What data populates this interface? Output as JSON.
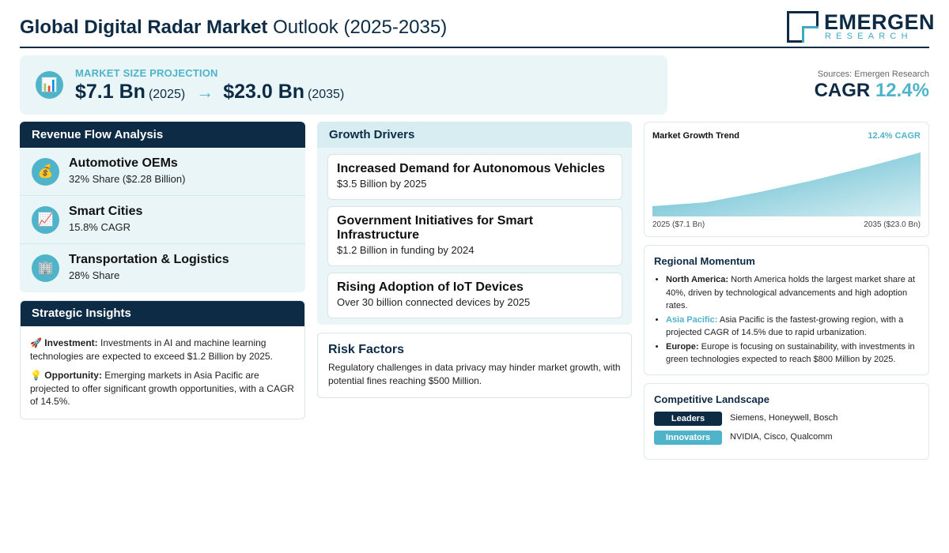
{
  "header": {
    "title_bold": "Global Digital Radar Market",
    "title_light": "Outlook (2025-2035)",
    "logo_main": "EMERGEN",
    "logo_sub": "RESEARCH"
  },
  "projection": {
    "icon": "bar-chart-icon",
    "label": "MARKET SIZE PROJECTION",
    "start_value": "$7.1 Bn",
    "start_year": "(2025)",
    "arrow": "→",
    "end_value": "$23.0 Bn",
    "end_year": "(2035)"
  },
  "cagr_block": {
    "source": "Sources: Emergen Research",
    "label": "CAGR",
    "value": "12.4%"
  },
  "revenue": {
    "title": "Revenue Flow Analysis",
    "items": [
      {
        "icon": "money-bag-icon",
        "glyph": "💰",
        "title": "Automotive OEMs",
        "sub": "32% Share ($2.28 Billion)"
      },
      {
        "icon": "trend-chart-icon",
        "glyph": "📈",
        "title": "Smart Cities",
        "sub": "15.8% CAGR"
      },
      {
        "icon": "office-building-icon",
        "glyph": "🏢",
        "title": "Transportation & Logistics",
        "sub": "28% Share"
      }
    ]
  },
  "insights": {
    "title": "Strategic Insights",
    "items": [
      {
        "icon": "rocket-icon",
        "glyph": "🚀",
        "label": "Investment:",
        "text": "Investments in AI and machine learning technologies are expected to exceed $1.2 Billion by 2025."
      },
      {
        "icon": "lightbulb-icon",
        "glyph": "💡",
        "label": "Opportunity:",
        "text": "Emerging markets in Asia Pacific are projected to offer significant growth opportunities, with a CAGR of 14.5%."
      }
    ]
  },
  "drivers": {
    "title": "Growth Drivers",
    "items": [
      {
        "title": "Increased Demand for Autonomous Vehicles",
        "sub": "$3.5 Billion by 2025"
      },
      {
        "title": "Government Initiatives for Smart Infrastructure",
        "sub": "$1.2 Billion in funding by 2024"
      },
      {
        "title": "Rising Adoption of IoT Devices",
        "sub": "Over 30 billion connected devices by 2025"
      }
    ]
  },
  "risk": {
    "title": "Risk Factors",
    "text": "Regulatory challenges in data privacy may hinder market growth, with potential fines reaching $500 Million."
  },
  "trend": {
    "title": "Market Growth Trend",
    "cagr_label": "12.4% CAGR",
    "start_label": "2025 ($7.1 Bn)",
    "end_label": "2035 ($23.0 Bn)",
    "fill_top": "#c9e9f0",
    "fill_bottom": "#4fb4c9"
  },
  "regional": {
    "title": "Regional Momentum",
    "items": [
      {
        "region": "North America:",
        "text": "North America holds the largest market share at 40%, driven by technological advancements and high adoption rates.",
        "accent": false
      },
      {
        "region": "Asia Pacific:",
        "text": "Asia Pacific is the fastest-growing region, with a projected CAGR of 14.5% due to rapid urbanization.",
        "accent": true
      },
      {
        "region": "Europe:",
        "text": "Europe is focusing on sustainability, with investments in green technologies expected to reach $800 Million by 2025.",
        "accent": false
      }
    ]
  },
  "competitive": {
    "title": "Competitive Landscape",
    "rows": [
      {
        "badge": "Leaders",
        "names": "Siemens, Honeywell, Bosch"
      },
      {
        "badge": "Innovators",
        "names": "NVIDIA, Cisco, Qualcomm"
      }
    ]
  },
  "colors": {
    "navy": "#0d2b45",
    "teal": "#4fb4c9",
    "panel_bg": "#e9f5f7"
  }
}
